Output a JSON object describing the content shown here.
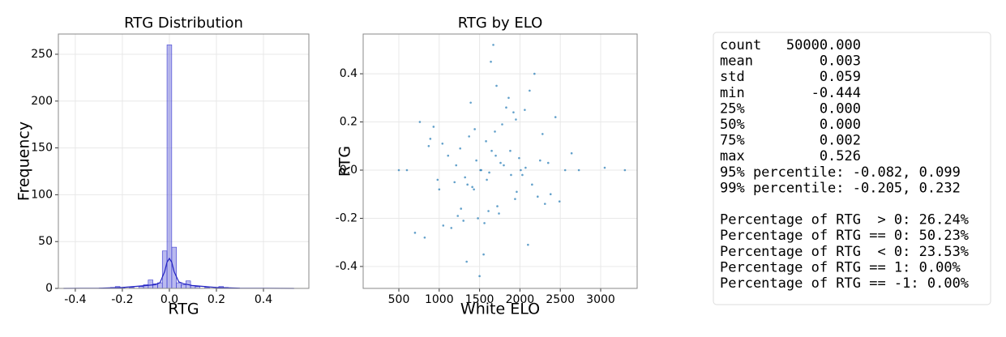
{
  "chart_data": [
    {
      "type": "histogram",
      "title": "RTG Distribution",
      "x_label": "RTG",
      "y_label": "Frequency",
      "bins": [
        -0.45,
        -0.43,
        -0.41,
        -0.39,
        -0.37,
        -0.35,
        -0.33,
        -0.31,
        -0.29,
        -0.27,
        -0.25,
        -0.23,
        -0.21,
        -0.19,
        -0.17,
        -0.15,
        -0.13,
        -0.11,
        -0.09,
        -0.07,
        -0.05,
        -0.03,
        -0.01,
        0.01,
        0.03,
        0.05,
        0.07,
        0.09,
        0.11,
        0.13,
        0.15,
        0.17,
        0.19,
        0.21,
        0.23,
        0.25,
        0.27,
        0.29,
        0.31,
        0.33,
        0.35,
        0.37,
        0.39,
        0.41,
        0.43,
        0.45,
        0.47,
        0.49,
        0.51,
        0.53
      ],
      "counts": [
        0,
        0,
        0,
        0,
        0,
        0,
        0,
        0,
        0,
        0,
        1,
        2,
        1,
        0,
        1,
        0,
        2,
        4,
        9,
        5,
        6,
        40,
        260,
        44,
        6,
        4,
        8,
        3,
        2,
        0,
        1,
        0,
        0,
        2,
        1,
        0,
        0,
        0,
        0,
        0,
        0,
        0,
        0,
        0,
        0,
        0,
        0,
        0,
        0
      ],
      "color": "#3a3ad0",
      "kde": {
        "x": [
          -0.45,
          -0.3,
          -0.2,
          -0.1,
          -0.06,
          -0.04,
          -0.02,
          -0.01,
          0,
          0.01,
          0.02,
          0.04,
          0.06,
          0.1,
          0.2,
          0.3,
          0.53
        ],
        "values": [
          0,
          0.2,
          1,
          3,
          4,
          6,
          18,
          28,
          32,
          28,
          18,
          7,
          5,
          3,
          1,
          0.2,
          0
        ],
        "color": "#2020c0"
      },
      "xlim": [
        -0.472,
        0.593
      ],
      "xticks": [
        -0.4,
        -0.2,
        {
          "value": 0,
          "label": "0.0"
        },
        0.2,
        0.4
      ],
      "ylim": [
        0,
        271.6
      ],
      "yticks": [
        0,
        50,
        100,
        150,
        200,
        250
      ],
      "grid": true
    },
    {
      "type": "scatter",
      "title": "RTG by ELO",
      "x_label": "White ELO",
      "y_label": "RTG",
      "color": "#1f77b4",
      "x": [
        1520,
        1210,
        1890,
        2250,
        980,
        1650,
        1430,
        2010,
        1760,
        1320,
        870,
        2380,
        1580,
        1940,
        1110,
        2150,
        1690,
        1270,
        2560,
        760,
        1480,
        1830,
        1050,
        2070,
        1620,
        1370,
        2310,
        930,
        1740,
        1990,
        1190,
        2440,
        1560,
        1860,
        700,
        2640,
        1410,
        1710,
        2100,
        1260,
        1510,
        1960,
        1040,
        2220,
        1640,
        1340,
        1800,
        2030,
        890,
        2490,
        1460,
        1590,
        1920,
        1150,
        2280,
        1720,
        1390,
        2730,
        820,
        1670,
        600,
        3050,
        1500,
        1780,
        1230,
        2120,
        1550,
        1880,
        1000,
        2350,
        1440,
        1610,
        1950,
        1300,
        2180,
        500,
        3300,
        1700,
        1350,
        2060
      ],
      "values": [
        0,
        0.02,
        -0.02,
        0.04,
        -0.04,
        0.08,
        -0.08,
        0,
        0.03,
        -0.03,
        0.1,
        -0.1,
        0.12,
        -0.12,
        0.06,
        -0.06,
        0.16,
        -0.16,
        0,
        0.2,
        -0.2,
        0.26,
        -0.23,
        0.01,
        -0.01,
        0.14,
        -0.14,
        0.18,
        -0.18,
        0.05,
        -0.05,
        0.22,
        -0.22,
        0.3,
        -0.26,
        0.07,
        -0.07,
        0.35,
        -0.31,
        0.09,
        0,
        -0.09,
        0.11,
        -0.11,
        0.45,
        -0.38,
        0.02,
        -0.02,
        0.13,
        -0.13,
        0.04,
        -0.04,
        0.24,
        -0.24,
        0.15,
        -0.15,
        0.28,
        0,
        -0.28,
        0.52,
        0,
        0.01,
        -0.44,
        0.19,
        -0.19,
        0.33,
        -0.35,
        0.08,
        -0.08,
        0.03,
        0.17,
        -0.17,
        0.21,
        -0.21,
        0.4,
        0,
        0,
        0.06,
        -0.06,
        0.25
      ],
      "xlim": [
        58,
        3452
      ],
      "xticks": [
        500,
        1000,
        1500,
        2000,
        2500,
        3000
      ],
      "ylim": [
        -0.491,
        0.565
      ],
      "yticks": [
        -0.4,
        -0.2,
        {
          "value": 0,
          "label": "0.0"
        },
        0.2,
        0.4
      ],
      "grid": true
    }
  ],
  "stats_box": {
    "lines": [
      "count   50000.000",
      "mean        0.003",
      "std         0.059",
      "min        -0.444",
      "25%         0.000",
      "50%         0.000",
      "75%         0.002",
      "max         0.526",
      "95% percentile: -0.082, 0.099",
      "99% percentile: -0.205, 0.232",
      "Percentage of RTG  > 0: 26.24%",
      "Percentage of RTG == 0: 50.23%",
      "Percentage of RTG  < 0: 23.53%",
      "Percentage of RTG == 1: 0.00%",
      "Percentage of RTG == -1: 0.00%"
    ]
  }
}
